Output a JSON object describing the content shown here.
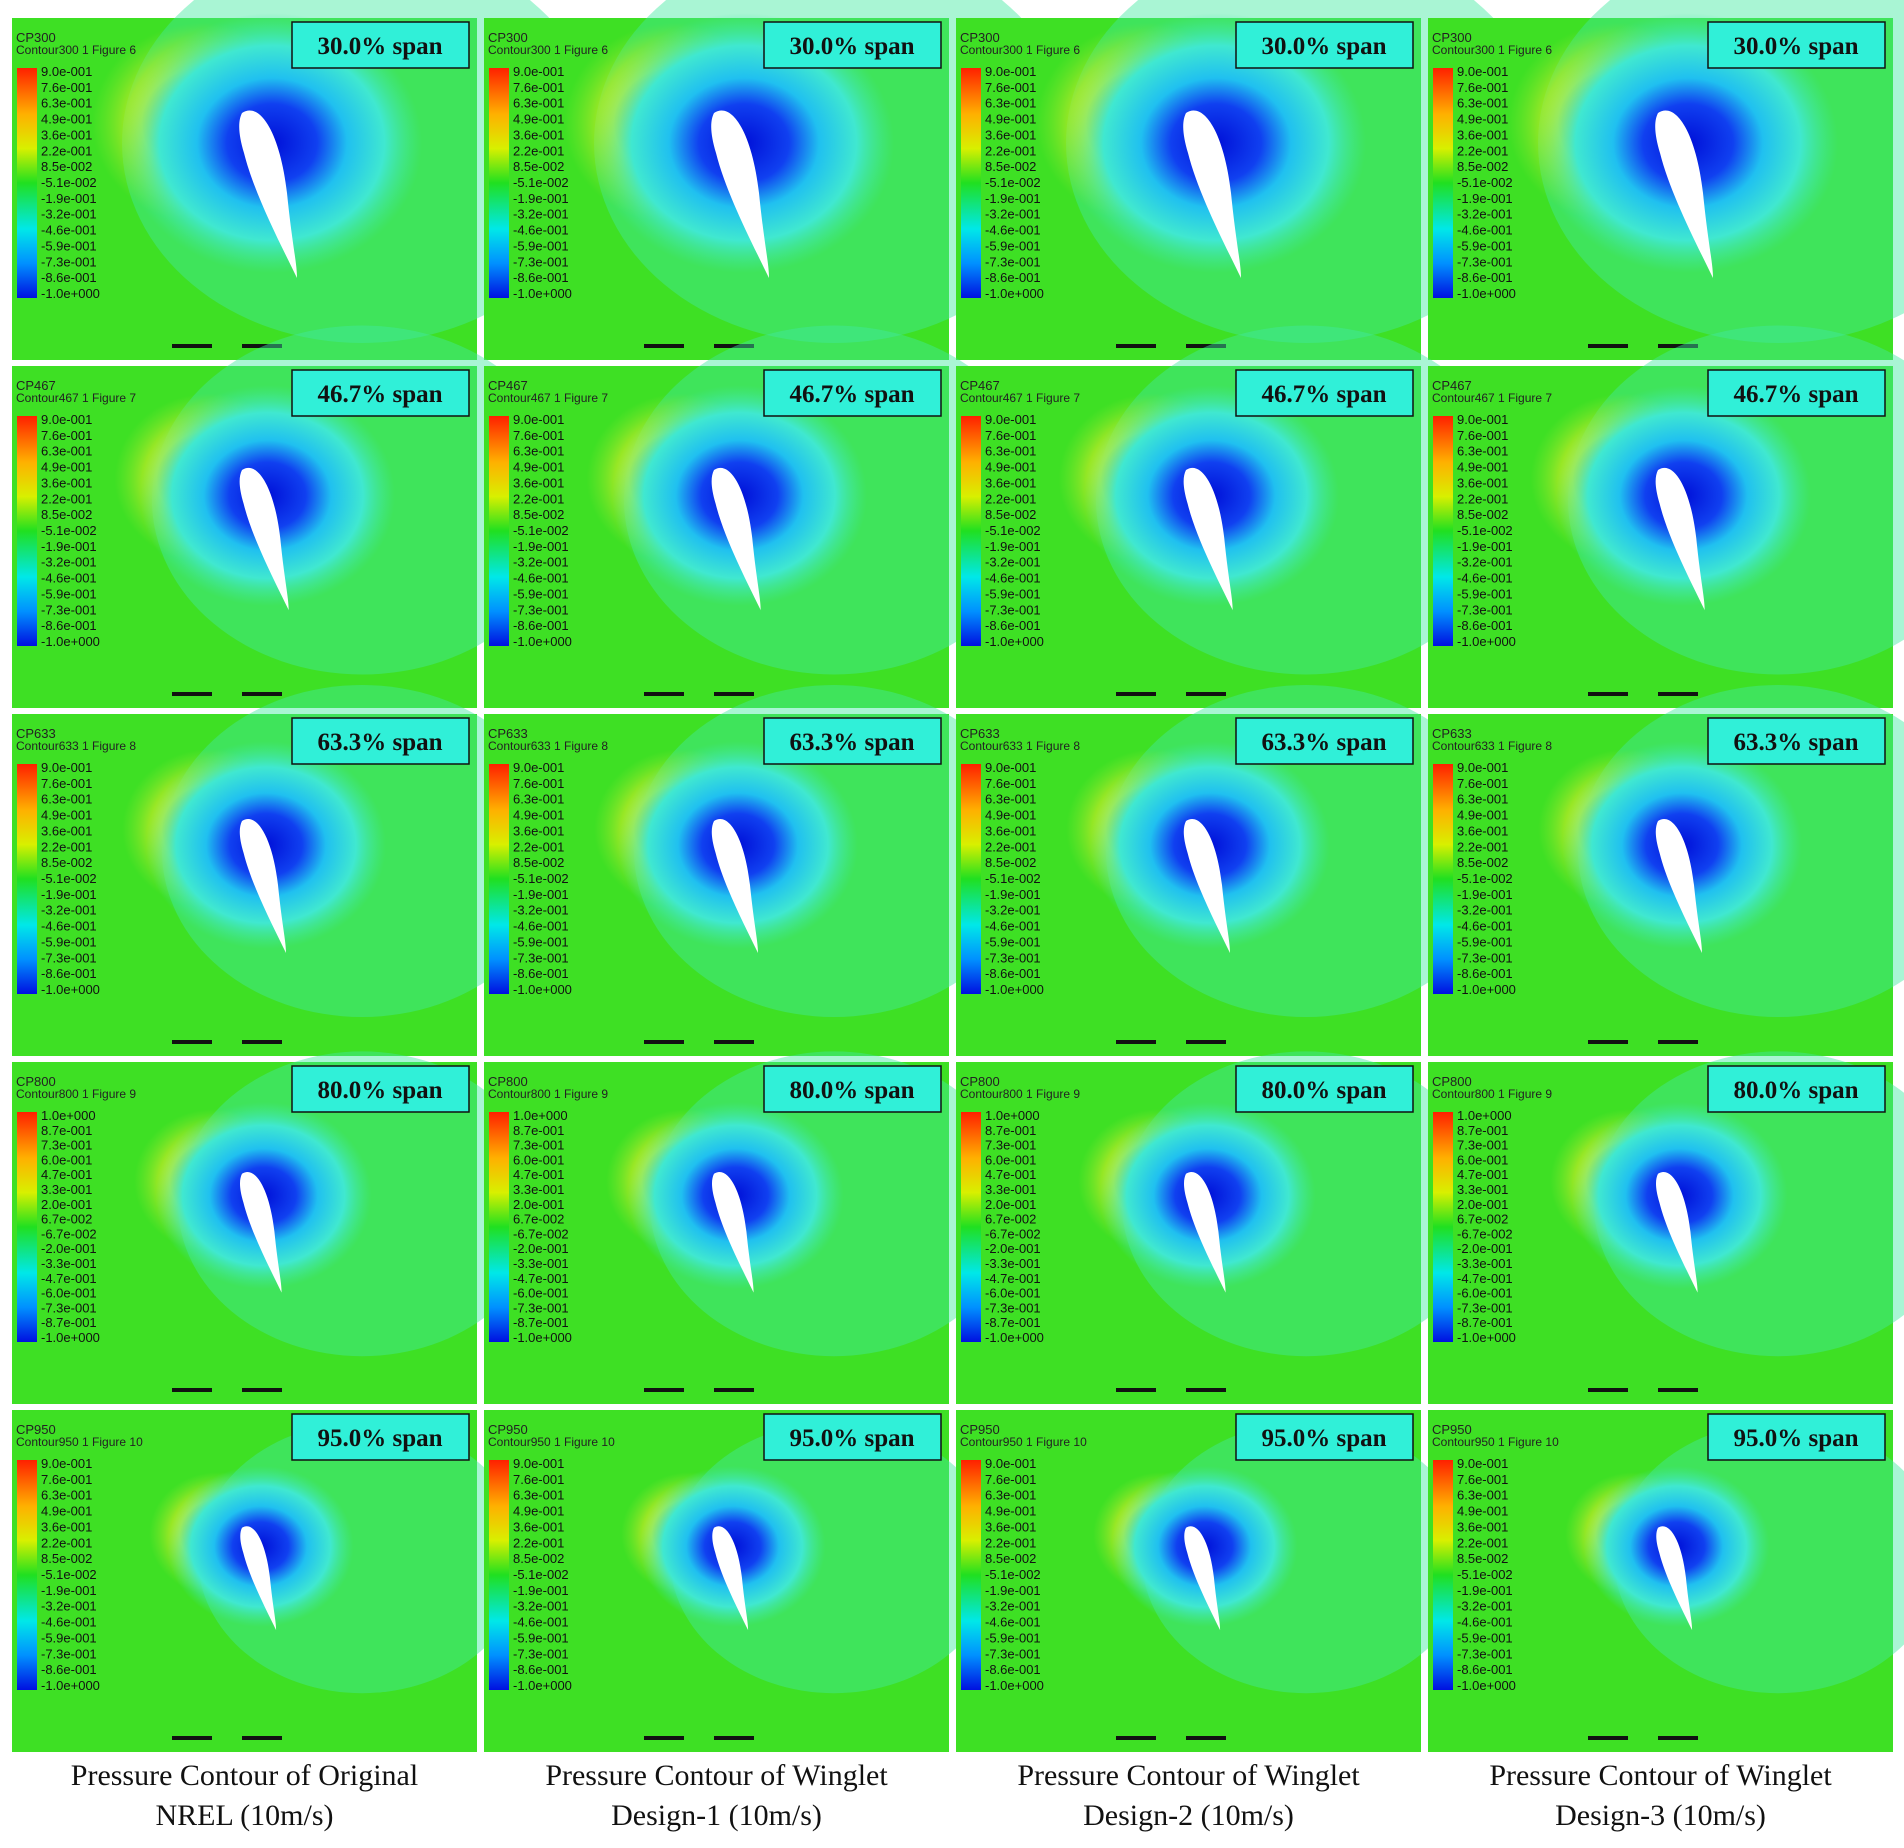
{
  "rows": [
    {
      "variable": "CP300",
      "figure": "Contour300 1 Figure 6",
      "span": "30.0% span",
      "legend": [
        "9.0e-001",
        "7.6e-001",
        "6.3e-001",
        "4.9e-001",
        "3.6e-001",
        "2.2e-001",
        "8.5e-002",
        "-5.1e-002",
        "-1.9e-001",
        "-3.2e-001",
        "-4.6e-001",
        "-5.9e-001",
        "-7.3e-001",
        "-8.6e-001",
        "-1.0e+000"
      ]
    },
    {
      "variable": "CP467",
      "figure": "Contour467 1 Figure 7",
      "span": "46.7% span",
      "legend": [
        "9.0e-001",
        "7.6e-001",
        "6.3e-001",
        "4.9e-001",
        "3.6e-001",
        "2.2e-001",
        "8.5e-002",
        "-5.1e-002",
        "-1.9e-001",
        "-3.2e-001",
        "-4.6e-001",
        "-5.9e-001",
        "-7.3e-001",
        "-8.6e-001",
        "-1.0e+000"
      ]
    },
    {
      "variable": "CP633",
      "figure": "Contour633 1 Figure 8",
      "span": "63.3% span",
      "legend": [
        "9.0e-001",
        "7.6e-001",
        "6.3e-001",
        "4.9e-001",
        "3.6e-001",
        "2.2e-001",
        "8.5e-002",
        "-5.1e-002",
        "-1.9e-001",
        "-3.2e-001",
        "-4.6e-001",
        "-5.9e-001",
        "-7.3e-001",
        "-8.6e-001",
        "-1.0e+000"
      ]
    },
    {
      "variable": "CP800",
      "figure": "Contour800 1 Figure 9",
      "span": "80.0% span",
      "legend": [
        "1.0e+000",
        "8.7e-001",
        "7.3e-001",
        "6.0e-001",
        "4.7e-001",
        "3.3e-001",
        "2.0e-001",
        "6.7e-002",
        "-6.7e-002",
        "-2.0e-001",
        "-3.3e-001",
        "-4.7e-001",
        "-6.0e-001",
        "-7.3e-001",
        "-8.7e-001",
        "-1.0e+000"
      ]
    },
    {
      "variable": "CP950",
      "figure": "Contour950 1 Figure 10",
      "span": "95.0% span",
      "legend": [
        "9.0e-001",
        "7.6e-001",
        "6.3e-001",
        "4.9e-001",
        "3.6e-001",
        "2.2e-001",
        "8.5e-002",
        "-5.1e-002",
        "-1.9e-001",
        "-3.2e-001",
        "-4.6e-001",
        "-5.9e-001",
        "-7.3e-001",
        "-8.6e-001",
        "-1.0e+000"
      ]
    }
  ],
  "columns": [
    {
      "caption": [
        "Pressure Contour of Original",
        "NREL (10m/s)"
      ]
    },
    {
      "caption": [
        "Pressure Contour of Winglet",
        "Design-1 (10m/s)"
      ]
    },
    {
      "caption": [
        "Pressure Contour of Winglet",
        "Design-2 (10m/s)"
      ]
    },
    {
      "caption": [
        "Pressure Contour of Winglet",
        "Design-3 (10m/s)"
      ]
    }
  ]
}
